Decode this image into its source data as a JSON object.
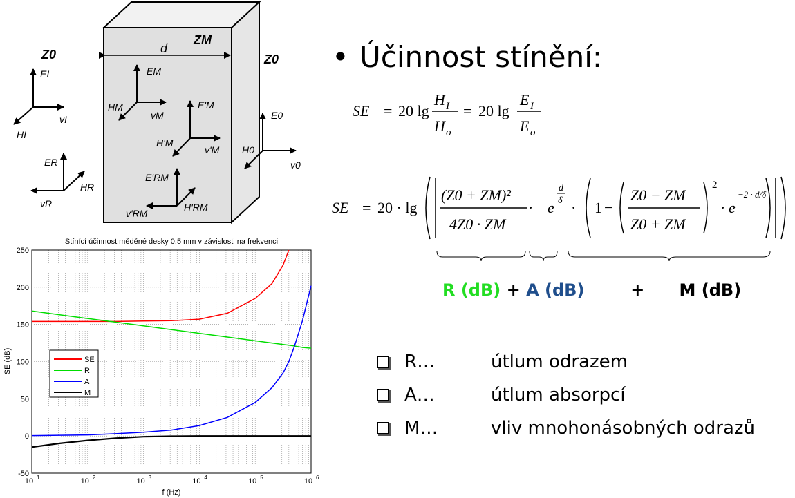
{
  "diagram": {
    "left_medium": "Z0",
    "right_medium": "Z0",
    "wall_impedance": "ZM",
    "thickness": "d",
    "incident": {
      "E": "EI",
      "H": "HI",
      "v": "vI"
    },
    "reflected": {
      "E": "ER",
      "H": "HR",
      "v": "vR"
    },
    "inside_forward": {
      "E": "EM",
      "H": "HM",
      "v": "vM"
    },
    "inside_backward": {
      "E": "E'M",
      "H": "H'M",
      "v": "v'M"
    },
    "inside_multi": {
      "E": "E'RM",
      "H": "H'RM",
      "v": "v'RM"
    },
    "transmitted": {
      "E": "E0",
      "H": "H0",
      "v": "v0"
    }
  },
  "heading": {
    "bullet": "•",
    "text": "Účinnost stínění:"
  },
  "formula1": {
    "lhs": "SE",
    "eq": "=",
    "coef": "20 lg",
    "num1": "H",
    "num1_sub": "I",
    "den1": "H",
    "den1_sub": "o",
    "num2": "E",
    "num2_sub": "I",
    "den2": "E",
    "den2_sub": "o"
  },
  "formula2": {
    "lhs": "SE",
    "eq": "=",
    "coef": "20 · lg",
    "frac1_num": "(Z0 + ZM)²",
    "frac1_den": "4Z0 · ZM",
    "exp_base": "e",
    "exp_num": "d",
    "exp_den": "δ",
    "one": "1",
    "frac2_num": "Z0 − ZM",
    "frac2_den": "Z0 + ZM",
    "sq": "2",
    "exp2": "−2 · d/δ"
  },
  "terms": {
    "r": "R (dB)",
    "plus1": "+",
    "a": "A (dB)",
    "plus2": "+",
    "m": "M (dB)",
    "r_color": "#22dd22",
    "a_color": "#1f4e8c"
  },
  "legend_items": [
    {
      "abbr": "R…",
      "desc": "útlum odrazem"
    },
    {
      "abbr": "A…",
      "desc": "útlum absorpcí"
    },
    {
      "abbr": "M…",
      "desc": "vliv mnohonásobných  odrazů"
    }
  ],
  "chart_data": {
    "type": "line",
    "title": "Stínící účinnost měděné desky 0.5 mm v závislosti na frekvenci",
    "xlabel": "f (Hz)",
    "ylabel": "SE (dB)",
    "xscale": "log",
    "xlim": [
      10,
      1000000
    ],
    "ylim": [
      -50,
      250
    ],
    "x_ticks": [
      "10",
      "10",
      "10",
      "10",
      "10",
      "10"
    ],
    "x_tick_exps": [
      "1",
      "2",
      "3",
      "4",
      "5",
      "6"
    ],
    "y_ticks": [
      "-50",
      "0",
      "50",
      "100",
      "150",
      "200",
      "250"
    ],
    "grid": true,
    "legend_position": "left",
    "x": [
      10,
      31.6,
      100,
      316,
      1000,
      3162,
      10000,
      31623,
      100000,
      200000,
      316228,
      400000,
      500000,
      700000,
      1000000
    ],
    "series": [
      {
        "name": "SE",
        "color": "#ff0000",
        "values": [
          154,
          154,
          154,
          154,
          154.5,
          155,
          157,
          165,
          185,
          205,
          230,
          250,
          null,
          null,
          null
        ]
      },
      {
        "name": "R",
        "color": "#00dd00",
        "values": [
          168,
          163,
          158,
          153,
          148,
          143,
          138,
          133,
          128,
          125,
          123,
          122,
          121,
          119,
          118
        ]
      },
      {
        "name": "A",
        "color": "#0000ff",
        "values": [
          0.5,
          1,
          1.5,
          3,
          5,
          8,
          14,
          25,
          45,
          65,
          85,
          100,
          120,
          155,
          202
        ]
      },
      {
        "name": "M",
        "color": "#000000",
        "values": [
          -15,
          -10,
          -6,
          -3,
          -1,
          -0.3,
          0,
          0,
          0,
          0,
          0,
          0,
          0,
          0,
          0
        ]
      }
    ]
  }
}
